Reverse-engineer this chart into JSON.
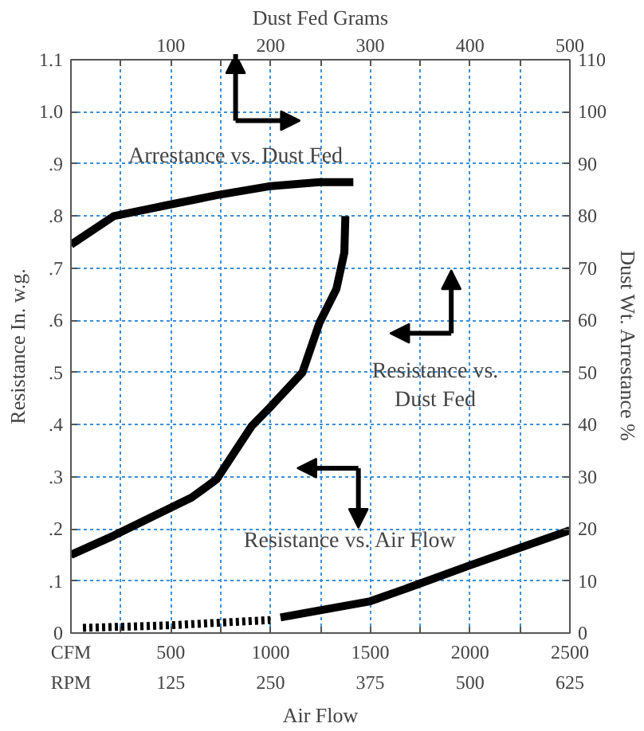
{
  "chart_data": {
    "type": "line",
    "xlabel": "Dust Fed Grams",
    "ylabel": "Resistance In. w.g.",
    "y2label": "Dust Wt. Arrestance %",
    "x2label": "Air Flow",
    "xlim": [
      0,
      500
    ],
    "xticks": [
      {
        "value": 50,
        "label": null
      },
      100,
      {
        "value": 150,
        "label": null
      },
      200,
      {
        "value": 250,
        "label": null
      },
      300,
      {
        "value": 350,
        "label": null
      },
      400,
      {
        "value": 450,
        "label": null
      },
      500
    ],
    "x2lim": [
      0,
      2500
    ],
    "x2ticks": [
      {
        "value": 0,
        "label": "CFM"
      },
      {
        "value": 250,
        "label": null
      },
      500,
      {
        "value": 750,
        "label": null
      },
      1000,
      {
        "value": 1250,
        "label": null
      },
      1500,
      {
        "value": 1750,
        "label": null
      },
      2000,
      {
        "value": 2250,
        "label": null
      },
      2500
    ],
    "ylim": [
      0,
      1.1
    ],
    "yticks": [
      0,
      {
        "value": 0.1,
        "label": ".1"
      },
      {
        "value": 0.2,
        "label": ".2"
      },
      {
        "value": 0.3,
        "label": ".3"
      },
      {
        "value": 0.4,
        "label": ".4"
      },
      {
        "value": 0.5,
        "label": ".5"
      },
      {
        "value": 0.6,
        "label": ".6"
      },
      {
        "value": 0.7,
        "label": ".7"
      },
      {
        "value": 0.8,
        "label": ".8"
      },
      {
        "value": 0.9,
        "label": ".9"
      },
      {
        "value": 1.0,
        "label": "1.0"
      },
      {
        "value": 1.1,
        "label": "1.1"
      }
    ],
    "y2lim": [
      0,
      110
    ],
    "y2ticks": [
      0,
      10,
      20,
      30,
      40,
      50,
      60,
      70,
      80,
      90,
      100,
      110
    ],
    "grid": true,
    "marker": "none",
    "series": [
      {
        "color": "#000000",
        "axis": "y2",
        "line_style": "solid",
        "x": [
          0,
          43,
          94,
          146,
          198,
          249,
          283
        ],
        "values": [
          74.5,
          80,
          82,
          84,
          85.7,
          86.5,
          86.5
        ]
      },
      {
        "color": "#000000",
        "line_style": "solid",
        "x": [
          0,
          43,
          121,
          146,
          181,
          198,
          232,
          249,
          266,
          274,
          275
        ],
        "values": [
          0.15,
          0.187,
          0.26,
          0.295,
          0.397,
          0.43,
          0.5,
          0.595,
          0.66,
          0.73,
          0.8
        ]
      },
      {
        "color": "#000000",
        "axis": "x2",
        "line_style": "dotted",
        "x": [
          60,
          250,
          500,
          750,
          1000
        ],
        "values": [
          0.01,
          0.012,
          0.015,
          0.02,
          0.025
        ]
      },
      {
        "color": "#000000",
        "axis": "x2",
        "line_style": "solid",
        "x": [
          1050,
          1500,
          1750,
          2000,
          2500
        ],
        "values": [
          0.03,
          0.061,
          0.095,
          0.13,
          0.197
        ]
      }
    ],
    "annotations": [
      "Arrestance vs. Dust Fed",
      "Resistance vs.\nDust Fed",
      "Resistance vs. Air Flow",
      "RPM",
      "125",
      "250",
      "375",
      "500",
      "625"
    ]
  }
}
